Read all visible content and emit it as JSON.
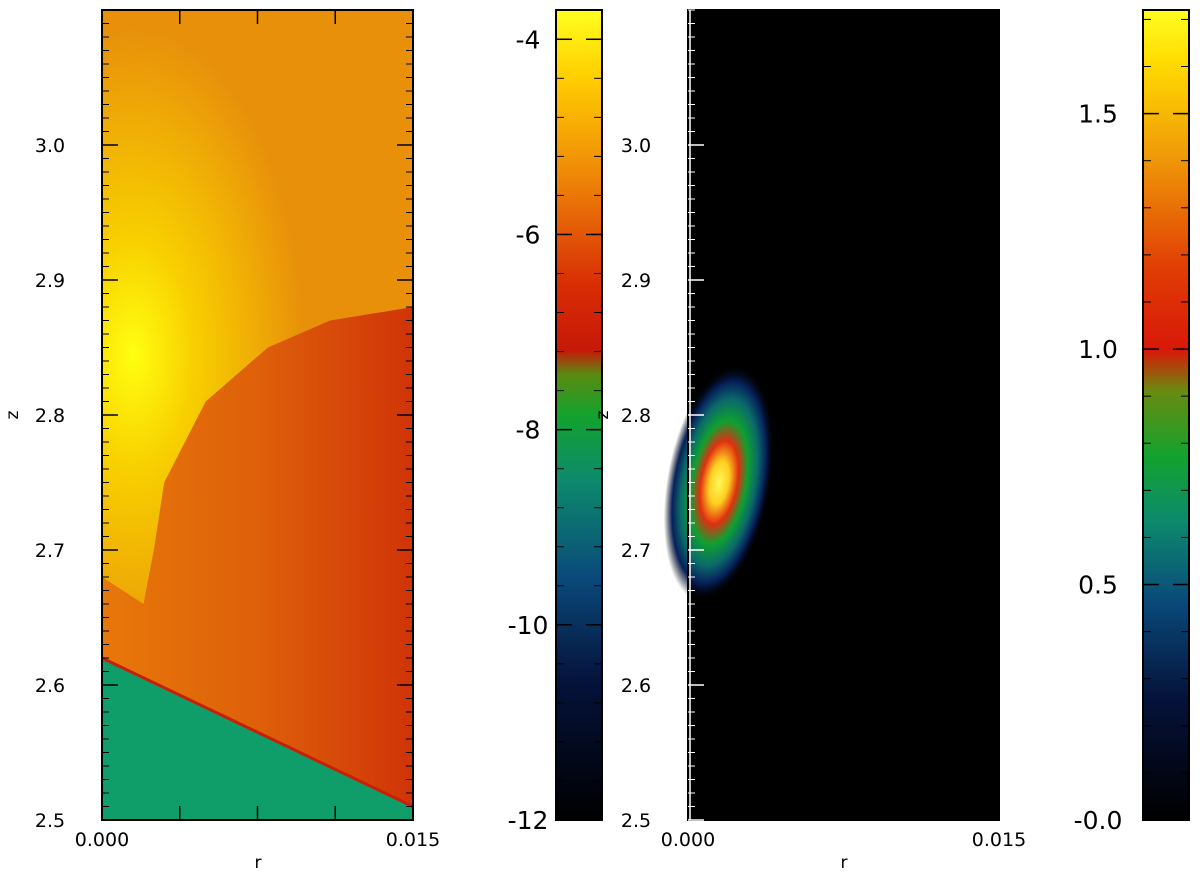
{
  "chart_data": [
    {
      "type": "heatmap",
      "xlabel": "r",
      "ylabel": "z",
      "xlim": [
        0.0,
        0.015
      ],
      "ylim": [
        2.5,
        3.1
      ],
      "x_ticks": [
        "0.000",
        "0.015"
      ],
      "y_ticks": [
        "2.5",
        "2.6",
        "2.7",
        "2.8",
        "2.9",
        "3.0"
      ],
      "y_tick_values": [
        2.5,
        2.6,
        2.7,
        2.8,
        2.9,
        3.0
      ],
      "regions": [
        {
          "name": "yellow-core",
          "boundary_r": [
            0.0,
            0.002,
            0.0025,
            0.003,
            0.005,
            0.008,
            0.011,
            0.015
          ],
          "boundary_z": [
            2.68,
            2.66,
            2.7,
            2.75,
            2.81,
            2.85,
            2.87,
            2.88
          ]
        },
        {
          "name": "green-base",
          "edge_z_at_r0": 2.62,
          "edge_z_at_rmax": 2.51
        }
      ],
      "colorbar": {
        "ticks": [
          "-4",
          "-6",
          "-8",
          "-10",
          "-12"
        ],
        "tick_values": [
          -4,
          -6,
          -8,
          -10,
          -12
        ],
        "range": [
          -12,
          -3.7
        ]
      }
    },
    {
      "type": "heatmap",
      "xlabel": "r",
      "ylabel": "z",
      "xlim": [
        0.0,
        0.015
      ],
      "ylim": [
        2.5,
        3.1
      ],
      "x_ticks": [
        "0.000",
        "0.015"
      ],
      "y_ticks": [
        "2.5",
        "2.6",
        "2.7",
        "2.8",
        "2.9",
        "3.0"
      ],
      "y_tick_values": [
        2.5,
        2.6,
        2.7,
        2.8,
        2.9,
        3.0
      ],
      "blob": {
        "r_center": 0.0015,
        "z_center": 2.75,
        "peak": 1.7
      },
      "colorbar": {
        "ticks": [
          "1.5",
          "1.0",
          "0.5",
          "-0.0"
        ],
        "tick_values": [
          1.5,
          1.0,
          0.5,
          0.0
        ],
        "range": [
          0.0,
          1.72
        ]
      }
    }
  ]
}
